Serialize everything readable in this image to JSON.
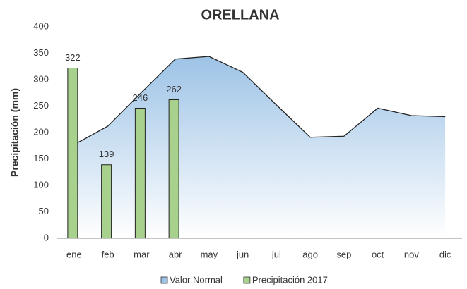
{
  "chart_data": {
    "type": "bar_area",
    "title": "ORELLANA",
    "y_label": "Precipitación (mm)",
    "categories": [
      "ene",
      "feb",
      "mar",
      "abr",
      "may",
      "jun",
      "jul",
      "ago",
      "sep",
      "oct",
      "nov",
      "dic"
    ],
    "series": [
      {
        "name": "Valor Normal",
        "type": "area",
        "color": "#9dc3e6",
        "values": [
          177,
          212,
          276,
          339,
          344,
          314,
          252,
          191,
          193,
          246,
          232,
          230
        ]
      },
      {
        "name": "Precipitación 2017",
        "type": "bar",
        "color": "#a9d18e",
        "values": [
          322,
          139,
          246,
          262,
          null,
          null,
          null,
          null,
          null,
          null,
          null,
          null
        ]
      }
    ],
    "ylim": [
      0,
      400
    ],
    "yticks": [
      0,
      50,
      100,
      150,
      200,
      250,
      300,
      350,
      400
    ],
    "grid": false
  }
}
